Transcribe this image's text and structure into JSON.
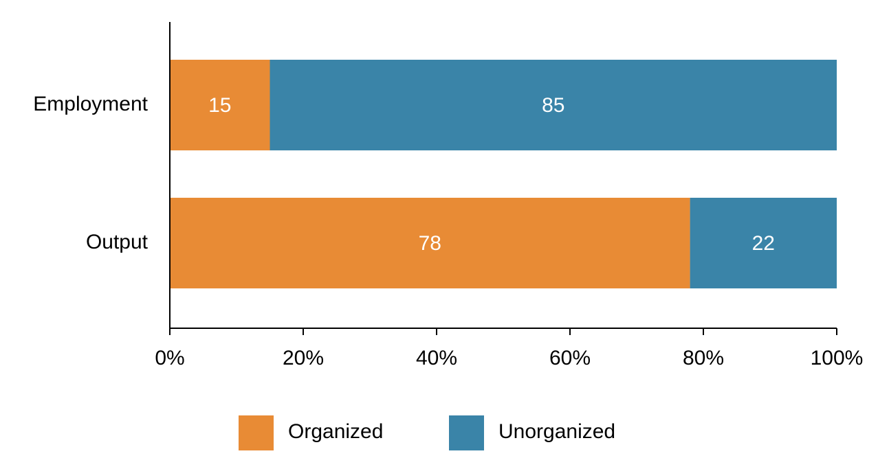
{
  "chart_data": {
    "type": "bar",
    "orientation": "horizontal",
    "stacked": true,
    "categories": [
      "Employment",
      "Output"
    ],
    "series": [
      {
        "name": "Organized",
        "color": "#e88b35",
        "values": [
          15,
          78
        ]
      },
      {
        "name": "Unorganized",
        "color": "#3a84a8",
        "values": [
          85,
          22
        ]
      }
    ],
    "xlim": [
      0,
      100
    ],
    "xticks": [
      {
        "value": 0,
        "label": "0%"
      },
      {
        "value": 20,
        "label": "20%"
      },
      {
        "value": 40,
        "label": "40%"
      },
      {
        "value": 60,
        "label": "60%"
      },
      {
        "value": 80,
        "label": "80%"
      },
      {
        "value": 100,
        "label": "100%"
      }
    ],
    "grid": false,
    "legend": "bottom"
  }
}
